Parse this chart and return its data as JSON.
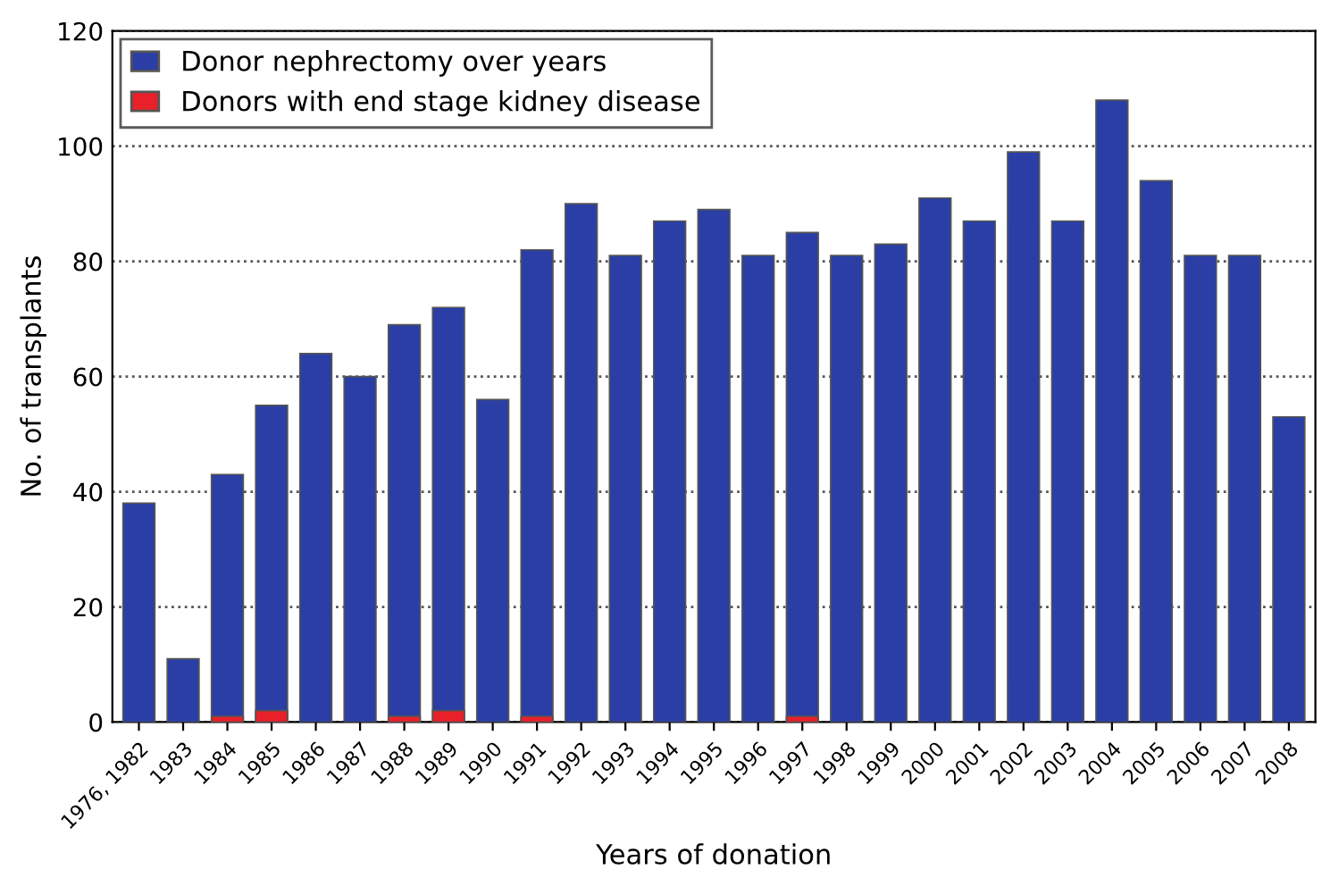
{
  "chart_data": {
    "type": "bar",
    "xlabel": "Years of donation",
    "ylabel": "No. of transplants",
    "categories": [
      "1976, 1982",
      "1983",
      "1984",
      "1985",
      "1986",
      "1987",
      "1988",
      "1989",
      "1990",
      "1991",
      "1992",
      "1993",
      "1994",
      "1995",
      "1996",
      "1997",
      "1998",
      "1999",
      "2000",
      "2001",
      "2002",
      "2003",
      "2004",
      "2005",
      "2006",
      "2007",
      "2008"
    ],
    "series": [
      {
        "name": "Donor nephrectomy over years",
        "color": "#2a3ea6",
        "values": [
          38,
          11,
          43,
          55,
          64,
          60,
          69,
          72,
          56,
          82,
          90,
          81,
          87,
          89,
          81,
          85,
          81,
          83,
          91,
          87,
          99,
          87,
          108,
          94,
          81,
          81,
          53
        ]
      },
      {
        "name": "Donors with end stage kidney disease",
        "color": "#e8202a",
        "values": [
          0,
          0,
          1,
          2,
          0,
          0,
          1,
          2,
          0,
          1,
          0,
          0,
          0,
          0,
          0,
          1,
          0,
          0,
          0,
          0,
          0,
          0,
          0,
          0,
          0,
          0,
          0
        ]
      }
    ],
    "ylim": [
      0,
      120
    ],
    "yticks": [
      0,
      20,
      40,
      60,
      80,
      100,
      120
    ],
    "grid": "y",
    "legend": "top left"
  }
}
